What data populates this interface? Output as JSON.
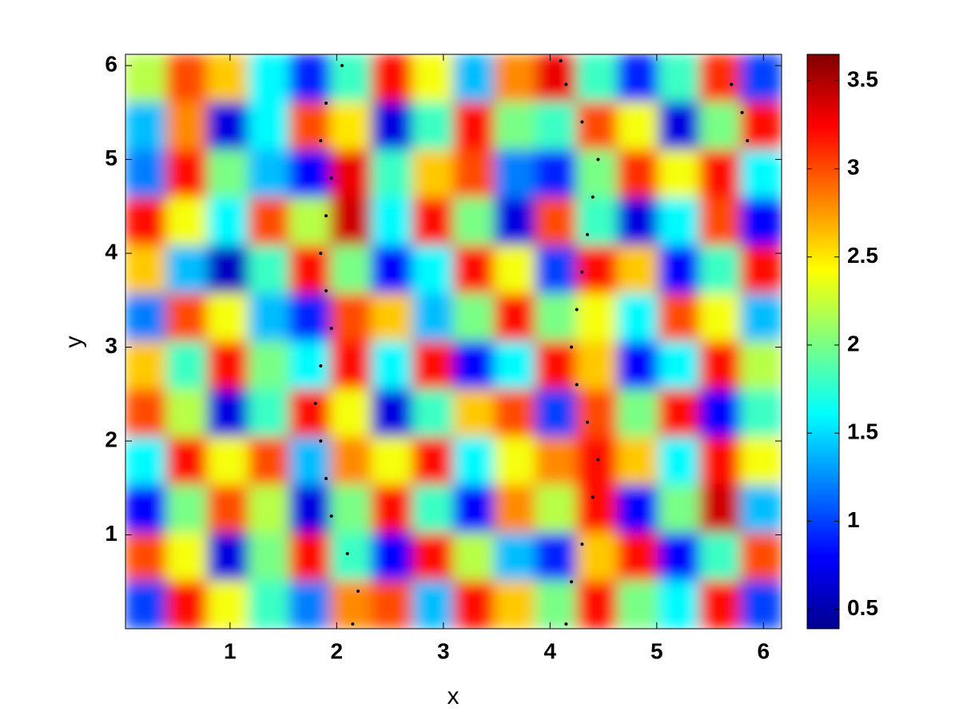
{
  "chart_data": {
    "type": "heatmap",
    "x_label": "x",
    "y_label": "y",
    "xlim": [
      0.02,
      6.17
    ],
    "ylim": [
      0,
      6.12
    ],
    "xticks": [
      1,
      2,
      3,
      4,
      5,
      6
    ],
    "yticks": [
      1,
      2,
      3,
      4,
      5,
      6
    ],
    "colormap": "jet",
    "clim": [
      0.39,
      3.65
    ],
    "cticks": [
      0.5,
      1,
      1.5,
      2,
      2.5,
      3,
      3.5
    ],
    "z": [
      [
        2.2,
        3.0,
        2.6,
        1.6,
        0.9,
        1.8,
        3.2,
        2.4,
        1.4,
        2.8,
        3.3,
        1.8,
        0.9,
        1.8,
        3.1,
        1.0
      ],
      [
        1.4,
        2.8,
        0.7,
        1.6,
        3.0,
        2.5,
        0.7,
        1.8,
        3.2,
        2.0,
        1.8,
        3.0,
        2.4,
        0.7,
        2.0,
        3.2
      ],
      [
        1.2,
        3.2,
        2.0,
        1.4,
        0.8,
        3.3,
        1.8,
        2.6,
        3.0,
        1.2,
        0.9,
        2.0,
        3.1,
        2.4,
        3.2,
        1.6
      ],
      [
        3.2,
        2.4,
        1.6,
        3.0,
        2.2,
        3.4,
        1.6,
        3.2,
        2.0,
        0.7,
        3.0,
        1.8,
        0.7,
        1.6,
        3.0,
        0.8
      ],
      [
        2.6,
        1.4,
        0.6,
        1.8,
        3.2,
        2.0,
        0.8,
        1.6,
        3.2,
        2.4,
        1.0,
        3.2,
        2.6,
        0.8,
        1.8,
        3.2
      ],
      [
        1.2,
        3.0,
        2.4,
        1.4,
        0.9,
        3.0,
        2.6,
        1.4,
        2.0,
        3.2,
        2.0,
        2.4,
        1.6,
        3.0,
        2.4,
        1.4
      ],
      [
        2.6,
        1.8,
        3.2,
        2.0,
        1.6,
        3.2,
        1.6,
        3.2,
        0.8,
        1.6,
        3.2,
        2.6,
        0.8,
        1.6,
        3.2,
        2.2
      ],
      [
        3.0,
        2.2,
        0.7,
        1.8,
        3.2,
        2.4,
        0.7,
        1.8,
        2.6,
        3.0,
        1.0,
        3.0,
        2.0,
        3.2,
        0.8,
        1.8
      ],
      [
        1.6,
        3.2,
        2.4,
        3.0,
        1.4,
        2.8,
        2.4,
        3.2,
        1.6,
        2.4,
        2.8,
        3.2,
        2.6,
        1.6,
        3.2,
        2.4
      ],
      [
        0.8,
        2.0,
        3.0,
        2.2,
        0.7,
        2.0,
        3.2,
        1.8,
        0.8,
        2.8,
        2.2,
        3.2,
        0.8,
        2.0,
        3.4,
        1.4
      ],
      [
        3.0,
        2.4,
        0.7,
        2.0,
        3.2,
        1.8,
        0.8,
        3.2,
        2.2,
        1.4,
        0.9,
        2.6,
        3.2,
        0.8,
        1.8,
        3.0
      ],
      [
        1.0,
        3.2,
        2.4,
        1.8,
        1.2,
        2.8,
        3.0,
        1.4,
        3.2,
        2.6,
        2.0,
        3.2,
        2.0,
        1.6,
        3.2,
        1.0
      ]
    ],
    "particles": {
      "x": [
        2.15,
        2.2,
        2.1,
        1.95,
        1.9,
        1.85,
        1.8,
        1.85,
        1.95,
        1.9,
        1.85,
        1.9,
        1.95,
        1.85,
        1.9,
        2.05,
        4.15,
        4.2,
        4.3,
        4.4,
        4.45,
        4.35,
        4.25,
        4.2,
        4.25,
        4.3,
        4.35,
        4.4,
        4.45,
        4.3,
        4.15,
        4.1,
        5.85,
        5.8,
        5.7
      ],
      "y": [
        0.05,
        0.4,
        0.8,
        1.2,
        1.6,
        2.0,
        2.4,
        2.8,
        3.2,
        3.6,
        4.0,
        4.4,
        4.8,
        5.2,
        5.6,
        6.0,
        0.05,
        0.5,
        0.9,
        1.4,
        1.8,
        2.2,
        2.6,
        3.0,
        3.4,
        3.8,
        4.2,
        4.6,
        5.0,
        5.4,
        5.8,
        6.05,
        5.2,
        5.5,
        5.8
      ],
      "color": "#000000"
    }
  }
}
